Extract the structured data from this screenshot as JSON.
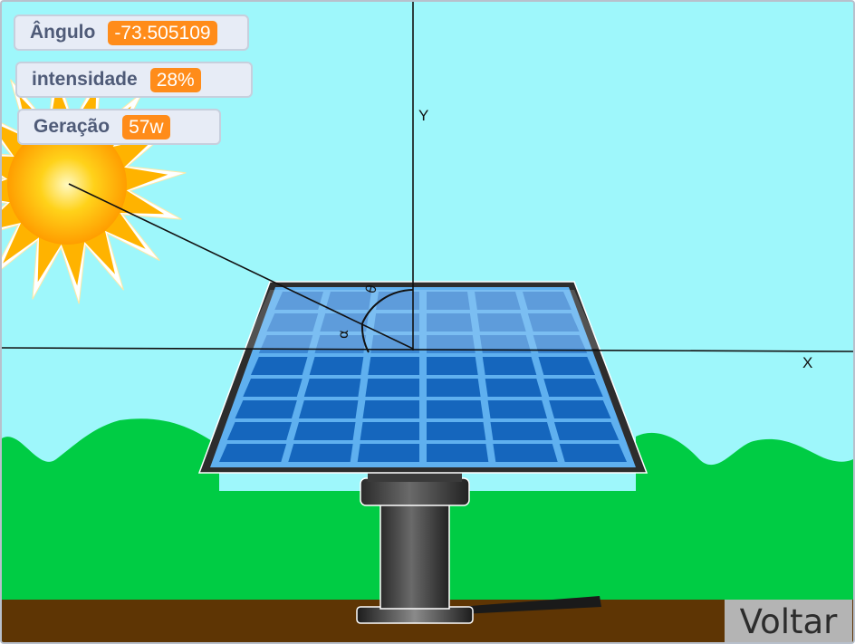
{
  "monitors": {
    "angulo": {
      "label": "Ângulo",
      "value": "-73.505109"
    },
    "intensidade": {
      "label": "intensidade",
      "value": "28%"
    },
    "geracao": {
      "label": "Geração",
      "value": "57w"
    }
  },
  "axes": {
    "y_label": "Y",
    "x_label": "X"
  },
  "angles": {
    "theta": "θ",
    "alpha": "α"
  },
  "buttons": {
    "voltar": "Voltar"
  },
  "icons": {
    "sun": "sun-icon",
    "panel": "solar-panel"
  },
  "colors": {
    "sky": "#9ef7fb",
    "grass": "#00cc44",
    "ground": "#5e3504",
    "sun_core": "#ffc000",
    "panel_blue": "#1d6fc4",
    "monitor_value": "#ff8c1a"
  }
}
